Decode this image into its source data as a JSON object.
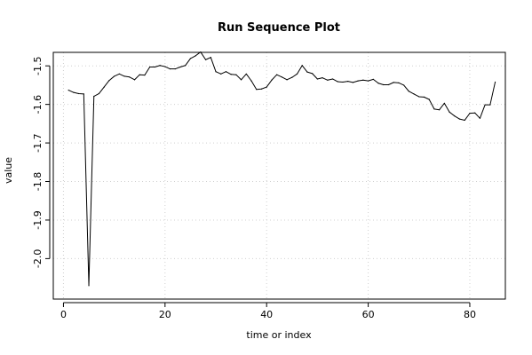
{
  "chart_data": {
    "type": "line",
    "title": "Run Sequence Plot",
    "xlabel": "time or index",
    "ylabel": "value",
    "xlim": [
      -2,
      87
    ],
    "ylim": [
      -2.105,
      -1.465
    ],
    "xticks": [
      0,
      20,
      40,
      60,
      80
    ],
    "xtick_labels": [
      "0",
      "20",
      "40",
      "60",
      "80"
    ],
    "yticks": [
      -2.0,
      -1.9,
      -1.8,
      -1.7,
      -1.6,
      -1.5
    ],
    "ytick_labels": [
      "-2.0",
      "-1.9",
      "-1.8",
      "-1.7",
      "-1.6",
      "-1.5"
    ],
    "grid": true,
    "series": [
      {
        "x": [
          1,
          2,
          3,
          4,
          5,
          6,
          7,
          8,
          9,
          10,
          11,
          12,
          13,
          14,
          15,
          16,
          17,
          18,
          19,
          20,
          21,
          22,
          23,
          24,
          25,
          26,
          27,
          28,
          29,
          30,
          31,
          32,
          33,
          34,
          35,
          36,
          37,
          38,
          39,
          40,
          41,
          42,
          43,
          44,
          45,
          46,
          47,
          48,
          49,
          50,
          51,
          52,
          53,
          54,
          55,
          56,
          57,
          58,
          59,
          60,
          61,
          62,
          63,
          64,
          65,
          66,
          67,
          68,
          69,
          70,
          71,
          72,
          73,
          74,
          75,
          76,
          77,
          78,
          79,
          80,
          81,
          82,
          83,
          84,
          85
        ],
        "y": [
          -1.563,
          -1.569,
          -1.572,
          -1.573,
          -2.07,
          -1.579,
          -1.572,
          -1.555,
          -1.538,
          -1.527,
          -1.521,
          -1.527,
          -1.529,
          -1.536,
          -1.523,
          -1.524,
          -1.503,
          -1.503,
          -1.499,
          -1.502,
          -1.508,
          -1.508,
          -1.503,
          -1.499,
          -1.481,
          -1.474,
          -1.464,
          -1.484,
          -1.478,
          -1.515,
          -1.521,
          -1.515,
          -1.522,
          -1.523,
          -1.536,
          -1.521,
          -1.539,
          -1.561,
          -1.56,
          -1.555,
          -1.537,
          -1.523,
          -1.529,
          -1.536,
          -1.53,
          -1.521,
          -1.499,
          -1.516,
          -1.52,
          -1.534,
          -1.531,
          -1.537,
          -1.534,
          -1.541,
          -1.542,
          -1.54,
          -1.543,
          -1.539,
          -1.537,
          -1.539,
          -1.535,
          -1.545,
          -1.549,
          -1.549,
          -1.543,
          -1.544,
          -1.55,
          -1.566,
          -1.573,
          -1.58,
          -1.581,
          -1.587,
          -1.612,
          -1.614,
          -1.597,
          -1.62,
          -1.63,
          -1.638,
          -1.641,
          -1.623,
          -1.622,
          -1.636,
          -1.601,
          -1.601,
          -1.542
        ]
      }
    ]
  }
}
